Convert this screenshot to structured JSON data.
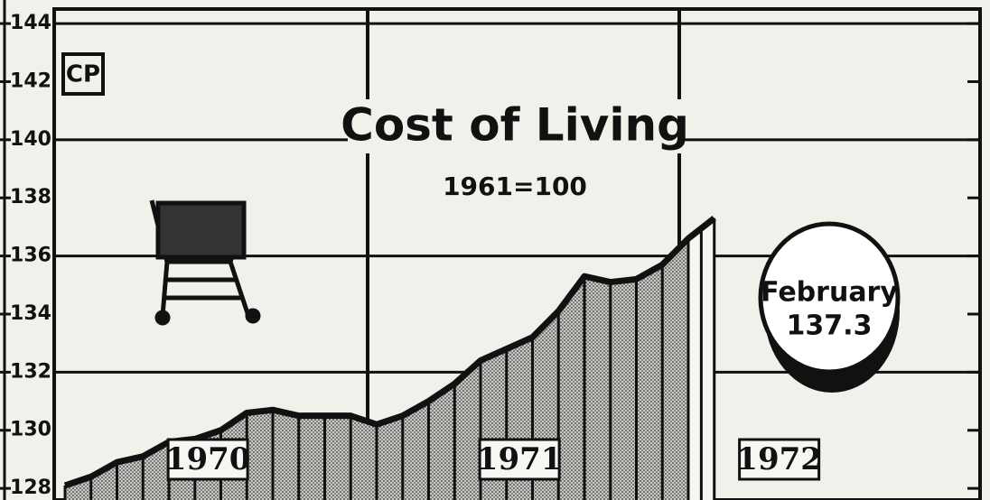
{
  "chart_data": {
    "type": "area",
    "title": "Cost of Living",
    "subtitle": "1961=100",
    "logo": "CP",
    "annotation": "February",
    "year_labels": [
      "1970",
      "1971",
      "1972"
    ],
    "categories": [
      null,
      null,
      null,
      null,
      null,
      null,
      null,
      null,
      null,
      null,
      null,
      null,
      null,
      null,
      null,
      null,
      null,
      null,
      null,
      null,
      null,
      null,
      null,
      null,
      null,
      null
    ],
    "values": [
      128.1,
      128.4,
      128.9,
      129.1,
      129.6,
      129.7,
      130.0,
      130.6,
      130.7,
      130.5,
      130.5,
      130.5,
      130.2,
      130.5,
      131.0,
      131.6,
      132.4,
      132.8,
      133.2,
      134.1,
      135.3,
      135.1,
      135.2,
      135.7,
      136.6,
      137.3
    ],
    "color": "#111111",
    "ylim": [
      127.6,
      144.5
    ],
    "yticks": [
      128,
      130,
      132,
      134,
      136,
      138,
      140,
      142,
      144
    ],
    "grid": true
  }
}
